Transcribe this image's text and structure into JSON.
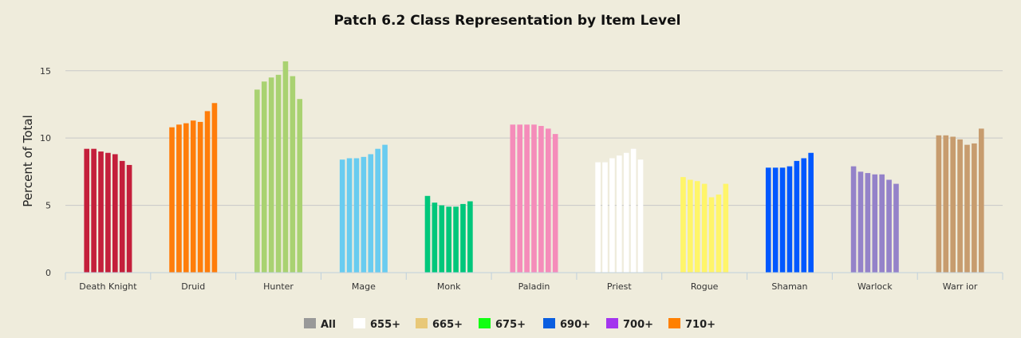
{
  "chart_data": {
    "type": "bar",
    "title": "Patch 6.2 Class Representation by Item Level",
    "xlabel": "",
    "ylabel": "Percent of Total",
    "ylim": [
      0,
      17
    ],
    "yticks": [
      0,
      5,
      10,
      15
    ],
    "grid": true,
    "legend_position": "bottom",
    "categories": [
      "Death Knight",
      "Druid",
      "Hunter",
      "Mage",
      "Monk",
      "Paladin",
      "Priest",
      "Rogue",
      "Shaman",
      "Warlock",
      "Warr ior"
    ],
    "category_colors": [
      "#c41f3b",
      "#ff7d0a",
      "#a9d271",
      "#69ccf0",
      "#00c77b",
      "#f58cba",
      "#ffffff",
      "#fff569",
      "#0058ff",
      "#9482c9",
      "#c79c6e"
    ],
    "series": [
      {
        "name": "All",
        "legend_color": "#999999",
        "values": [
          9.2,
          10.8,
          13.6,
          8.4,
          5.7,
          11.0,
          8.2,
          7.1,
          7.8,
          7.9,
          10.2
        ]
      },
      {
        "name": "655+",
        "legend_color": "#ffffff",
        "values": [
          9.2,
          11.0,
          14.2,
          8.5,
          5.2,
          11.0,
          8.2,
          6.9,
          7.8,
          7.5,
          10.2
        ]
      },
      {
        "name": "665+",
        "legend_color": "#e8c878",
        "values": [
          9.0,
          11.1,
          14.5,
          8.5,
          5.0,
          11.0,
          8.5,
          6.8,
          7.8,
          7.4,
          10.1
        ]
      },
      {
        "name": "675+",
        "legend_color": "#11ff11",
        "values": [
          8.9,
          11.3,
          14.7,
          8.6,
          4.9,
          11.0,
          8.7,
          6.6,
          7.9,
          7.3,
          9.9
        ]
      },
      {
        "name": "690+",
        "legend_color": "#0a5ee0",
        "values": [
          8.8,
          11.2,
          15.7,
          8.8,
          4.9,
          10.9,
          8.9,
          5.6,
          8.3,
          7.3,
          9.5
        ]
      },
      {
        "name": "700+",
        "legend_color": "#a335ee",
        "values": [
          8.3,
          12.0,
          14.6,
          9.2,
          5.1,
          10.7,
          9.2,
          5.8,
          8.5,
          6.9,
          9.6
        ]
      },
      {
        "name": "710+",
        "legend_color": "#ff8000",
        "values": [
          8.0,
          12.6,
          12.9,
          9.5,
          5.3,
          10.3,
          8.4,
          6.6,
          8.9,
          6.6,
          10.7
        ]
      }
    ]
  }
}
